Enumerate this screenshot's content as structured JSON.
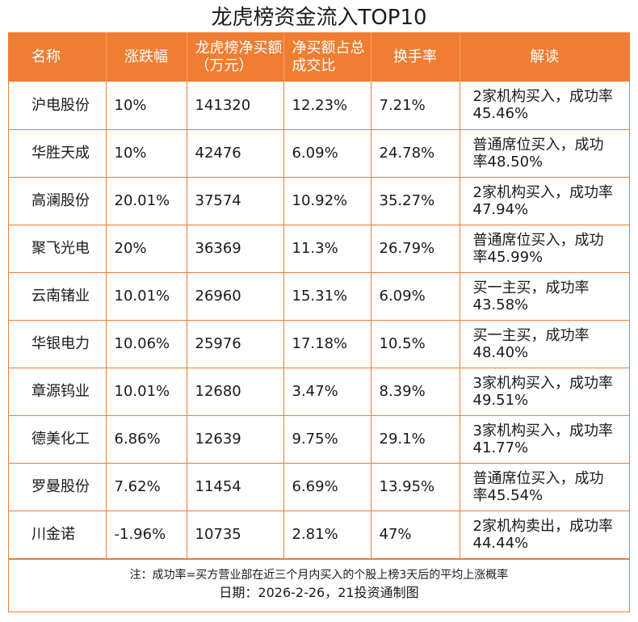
{
  "title": "龙虎榜资金流入TOP10",
  "headers": [
    "名称",
    "涨跌幅",
    "龙虎榜净买额（万元）",
    "净买额占总成交比",
    "换手率",
    "解读"
  ],
  "rows": [
    {
      "name": "沪电股份",
      "change": "10%",
      "net_buy": "141320",
      "ratio": "12.23%",
      "turnover": "7.21%",
      "note": "2家机构买入，成功率45.46%"
    },
    {
      "name": "华胜天成",
      "change": "10%",
      "net_buy": "42476",
      "ratio": "6.09%",
      "turnover": "24.78%",
      "note": "普通席位买入，成功率48.50%"
    },
    {
      "name": "高澜股份",
      "change": "20.01%",
      "net_buy": "37574",
      "ratio": "10.92%",
      "turnover": "35.27%",
      "note": "2家机构买入，成功率47.94%"
    },
    {
      "name": "聚飞光电",
      "change": "20%",
      "net_buy": "36369",
      "ratio": "11.3%",
      "turnover": "26.79%",
      "note": "普通席位买入，成功率45.99%"
    },
    {
      "name": "云南锗业",
      "change": "10.01%",
      "net_buy": "26960",
      "ratio": "15.31%",
      "turnover": "6.09%",
      "note": "买一主买，成功率43.58%"
    },
    {
      "name": "华银电力",
      "change": "10.06%",
      "net_buy": "25976",
      "ratio": "17.18%",
      "turnover": "10.5%",
      "note": "买一主买，成功率48.40%"
    },
    {
      "name": "章源钨业",
      "change": "10.01%",
      "net_buy": "12680",
      "ratio": "3.47%",
      "turnover": "8.39%",
      "note": "3家机构买入，成功率49.51%"
    },
    {
      "name": "德美化工",
      "change": "6.86%",
      "net_buy": "12639",
      "ratio": "9.75%",
      "turnover": "29.1%",
      "note": "3家机构买入，成功率41.77%"
    },
    {
      "name": "罗曼股份",
      "change": "7.62%",
      "net_buy": "11454",
      "ratio": "6.69%",
      "turnover": "13.95%",
      "note": "普通席位买入，成功率45.54%"
    },
    {
      "name": "川金诺",
      "change": "-1.96%",
      "net_buy": "10735",
      "ratio": "2.81%",
      "turnover": "47%",
      "note": "2家机构卖出，成功率44.44%"
    }
  ],
  "footer": {
    "note": "注：成功率=买方营业部在近三个月内买入的个股上榜3天后的平均上涨概率",
    "date": "日期：2026-2-26，21投资通制图"
  },
  "colors": {
    "accent": "#ef7d32",
    "header_text": "#ffffff"
  }
}
